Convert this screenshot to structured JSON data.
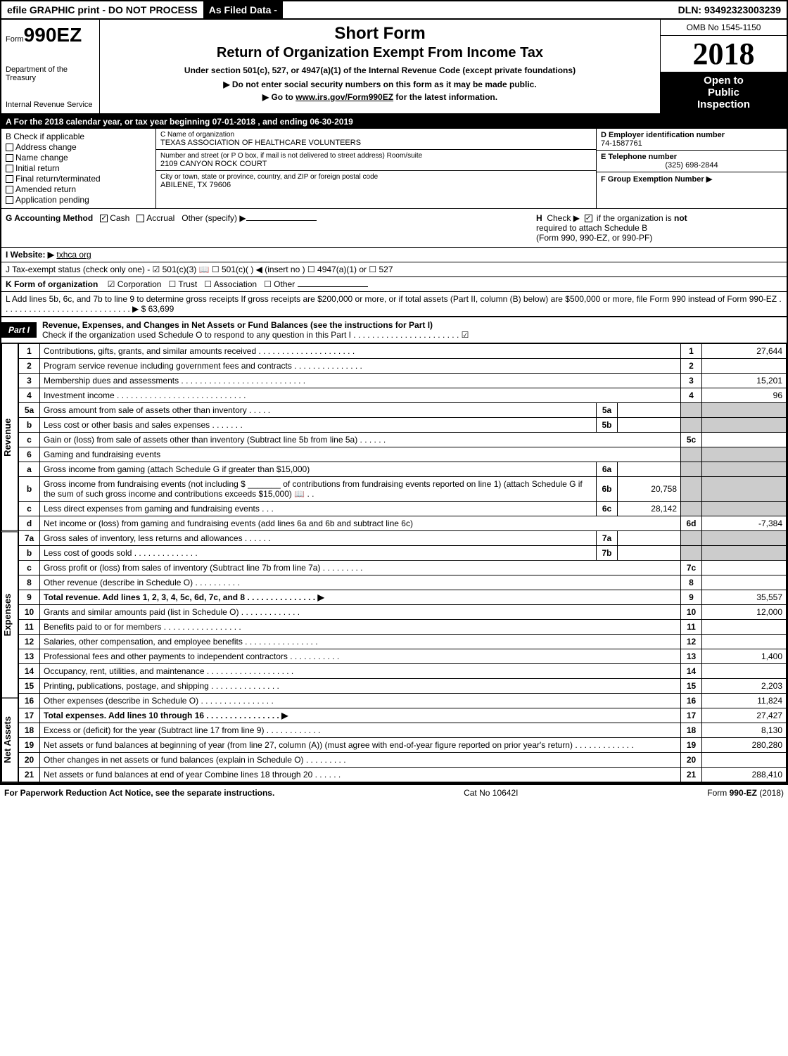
{
  "top": {
    "efile": "efile GRAPHIC print - DO NOT PROCESS",
    "asfiled": "As Filed Data -",
    "dln": "DLN: 93492323003239"
  },
  "header": {
    "form_prefix": "Form",
    "form_number": "990EZ",
    "short_form": "Short Form",
    "title": "Return of Organization Exempt From Income Tax",
    "subtitle": "Under section 501(c), 527, or 4947(a)(1) of the Internal Revenue Code (except private foundations)",
    "arrow1": "▶ Do not enter social security numbers on this form as it may be made public.",
    "arrow2": "▶ Go to www.irs.gov/Form990EZ for the latest information.",
    "dept1": "Department of the Treasury",
    "dept2": "Internal Revenue Service",
    "omb": "OMB No 1545-1150",
    "year": "2018",
    "inspection1": "Open to",
    "inspection2": "Public",
    "inspection3": "Inspection"
  },
  "rowA": {
    "text_prefix": "A  For the 2018 calendar year, or tax year beginning ",
    "begin": "07-01-2018",
    "mid": " , and ending ",
    "end": "06-30-2019"
  },
  "sectionB": {
    "label": "B Check if applicable",
    "items": [
      "Address change",
      "Name change",
      "Initial return",
      "Final return/terminated",
      "Amended return",
      "Application pending"
    ]
  },
  "sectionC": {
    "name_label": "C Name of organization",
    "name": "TEXAS ASSOCIATION OF HEALTHCARE VOLUNTEERS",
    "street_label": "Number and street (or P O box, if mail is not delivered to street address)  Room/suite",
    "street": "2109 CANYON ROCK COURT",
    "city_label": "City or town, state or province, country, and ZIP or foreign postal code",
    "city": "ABILENE, TX  79606"
  },
  "sectionD": {
    "ein_label": "D Employer identification number",
    "ein": "74-1587761",
    "phone_label": "E Telephone number",
    "phone": "(325) 698-2844",
    "group_label": "F Group Exemption Number   ▶"
  },
  "rowG": {
    "label": "G Accounting Method",
    "cash": "Cash",
    "accrual": "Accrual",
    "other": "Other (specify) ▶"
  },
  "rowH": {
    "text1": "H  Check ▶  ☑  if the organization is not",
    "text2": "required to attach Schedule B",
    "text3": "(Form 990, 990-EZ, or 990-PF)"
  },
  "rowI": {
    "label": "I Website: ▶",
    "value": "txhca org"
  },
  "rowJ": {
    "text": "J Tax-exempt status (check only one) - ☑ 501(c)(3) 📖 ☐ 501(c)(  ) ◀ (insert no ) ☐ 4947(a)(1) or ☐ 527"
  },
  "rowK": {
    "label": "K Form of organization",
    "corp": "☑ Corporation",
    "trust": "☐ Trust",
    "assoc": "☐ Association",
    "other": "☐ Other"
  },
  "rowL": {
    "text": "L Add lines 5b, 6c, and 7b to line 9 to determine gross receipts  If gross receipts are $200,000 or more, or if total assets (Part II, column (B) below) are $500,000 or more, file Form 990 instead of Form 990-EZ . . . . . . . . . . . . . . . . . . . . . . . . . . . . ▶ $ 63,699"
  },
  "part1": {
    "badge": "Part I",
    "title": "Revenue, Expenses, and Changes in Net Assets or Fund Balances (see the instructions for Part I)",
    "sub": "Check if the organization used Schedule O to respond to any question in this Part I . . . . . . . . . . . . . . . . . . . . . . . ☑"
  },
  "sidelabels": {
    "revenue": "Revenue",
    "expenses": "Expenses",
    "netassets": "Net Assets"
  },
  "lines": [
    {
      "n": "1",
      "desc": "Contributions, gifts, grants, and similar amounts received . . . . . . . . . . . . . . . . . . . . .",
      "ref": "1",
      "amt": "27,644"
    },
    {
      "n": "2",
      "desc": "Program service revenue including government fees and contracts . . . . . . . . . . . . . . .",
      "ref": "2",
      "amt": ""
    },
    {
      "n": "3",
      "desc": "Membership dues and assessments . . . . . . . . . . . . . . . . . . . . . . . . . . .",
      "ref": "3",
      "amt": "15,201"
    },
    {
      "n": "4",
      "desc": "Investment income . . . . . . . . . . . . . . . . . . . . . . . . . . . .",
      "ref": "4",
      "amt": "96"
    },
    {
      "n": "5a",
      "desc": "Gross amount from sale of assets other than inventory . . . . .",
      "sub": "5a",
      "subval": ""
    },
    {
      "n": "b",
      "desc": "Less  cost or other basis and sales expenses . . . . . . .",
      "sub": "5b",
      "subval": ""
    },
    {
      "n": "c",
      "desc": "Gain or (loss) from sale of assets other than inventory (Subtract line 5b from line 5a) . . . . . .",
      "ref": "5c",
      "amt": ""
    },
    {
      "n": "6",
      "desc": "Gaming and fundraising events"
    },
    {
      "n": "a",
      "desc": "Gross income from gaming (attach Schedule G if greater than $15,000)",
      "sub": "6a",
      "subval": ""
    },
    {
      "n": "b",
      "desc": "Gross income from fundraising events (not including $ _______ of contributions from fundraising events reported on line 1) (attach Schedule G if the sum of such gross income and contributions exceeds $15,000) 📖 . .",
      "sub": "6b",
      "subval": "20,758"
    },
    {
      "n": "c",
      "desc": "Less  direct expenses from gaming and fundraising events    . . .",
      "sub": "6c",
      "subval": "28,142"
    },
    {
      "n": "d",
      "desc": "Net income or (loss) from gaming and fundraising events (add lines 6a and 6b and subtract line 6c)",
      "ref": "6d",
      "amt": "-7,384"
    },
    {
      "n": "7a",
      "desc": "Gross sales of inventory, less returns and allowances . . . . . .",
      "sub": "7a",
      "subval": ""
    },
    {
      "n": "b",
      "desc": "Less  cost of goods sold         . . . . . . . . . . . . . .",
      "sub": "7b",
      "subval": ""
    },
    {
      "n": "c",
      "desc": "Gross profit or (loss) from sales of inventory (Subtract line 7b from line 7a) . . . . . . . . .",
      "ref": "7c",
      "amt": ""
    },
    {
      "n": "8",
      "desc": "Other revenue (describe in Schedule O)               . . . . . . . . . .",
      "ref": "8",
      "amt": ""
    },
    {
      "n": "9",
      "desc": "Total revenue. Add lines 1, 2, 3, 4, 5c, 6d, 7c, and 8 . . . . . . . . . . . . . . .   ▶",
      "ref": "9",
      "amt": "35,557",
      "bold": true
    },
    {
      "n": "10",
      "desc": "Grants and similar amounts paid (list in Schedule O)       . . . . . . . . . . . . .",
      "ref": "10",
      "amt": "12,000"
    },
    {
      "n": "11",
      "desc": "Benefits paid to or for members          . . . . . . . . . . . . . . . . .",
      "ref": "11",
      "amt": ""
    },
    {
      "n": "12",
      "desc": "Salaries, other compensation, and employee benefits . . . . . . . . . . . . . . . .",
      "ref": "12",
      "amt": ""
    },
    {
      "n": "13",
      "desc": "Professional fees and other payments to independent contractors . . . . . . . . . . .",
      "ref": "13",
      "amt": "1,400"
    },
    {
      "n": "14",
      "desc": "Occupancy, rent, utilities, and maintenance . . . . . . . . . . . . . . . . . . .",
      "ref": "14",
      "amt": ""
    },
    {
      "n": "15",
      "desc": "Printing, publications, postage, and shipping        . . . . . . . . . . . . . . .",
      "ref": "15",
      "amt": "2,203"
    },
    {
      "n": "16",
      "desc": "Other expenses (describe in Schedule O)         . . . . . . . . . . . . . . . .",
      "ref": "16",
      "amt": "11,824"
    },
    {
      "n": "17",
      "desc": "Total expenses. Add lines 10 through 16      . . . . . . . . . . . . . . . .  ▶",
      "ref": "17",
      "amt": "27,427",
      "bold": true
    },
    {
      "n": "18",
      "desc": "Excess or (deficit) for the year (Subtract line 17 from line 9)    . . . . . . . . . . . .",
      "ref": "18",
      "amt": "8,130"
    },
    {
      "n": "19",
      "desc": "Net assets or fund balances at beginning of year (from line 27, column (A)) (must agree with end-of-year figure reported on prior year's return)       . . . . . . . . . . . . .",
      "ref": "19",
      "amt": "280,280"
    },
    {
      "n": "20",
      "desc": "Other changes in net assets or fund balances (explain in Schedule O)    . . . . . . . . .",
      "ref": "20",
      "amt": ""
    },
    {
      "n": "21",
      "desc": "Net assets or fund balances at end of year  Combine lines 18 through 20     . . . . . .",
      "ref": "21",
      "amt": "288,410"
    }
  ],
  "footer": {
    "left": "For Paperwork Reduction Act Notice, see the separate instructions.",
    "center": "Cat No 10642I",
    "right": "Form 990-EZ (2018)"
  }
}
